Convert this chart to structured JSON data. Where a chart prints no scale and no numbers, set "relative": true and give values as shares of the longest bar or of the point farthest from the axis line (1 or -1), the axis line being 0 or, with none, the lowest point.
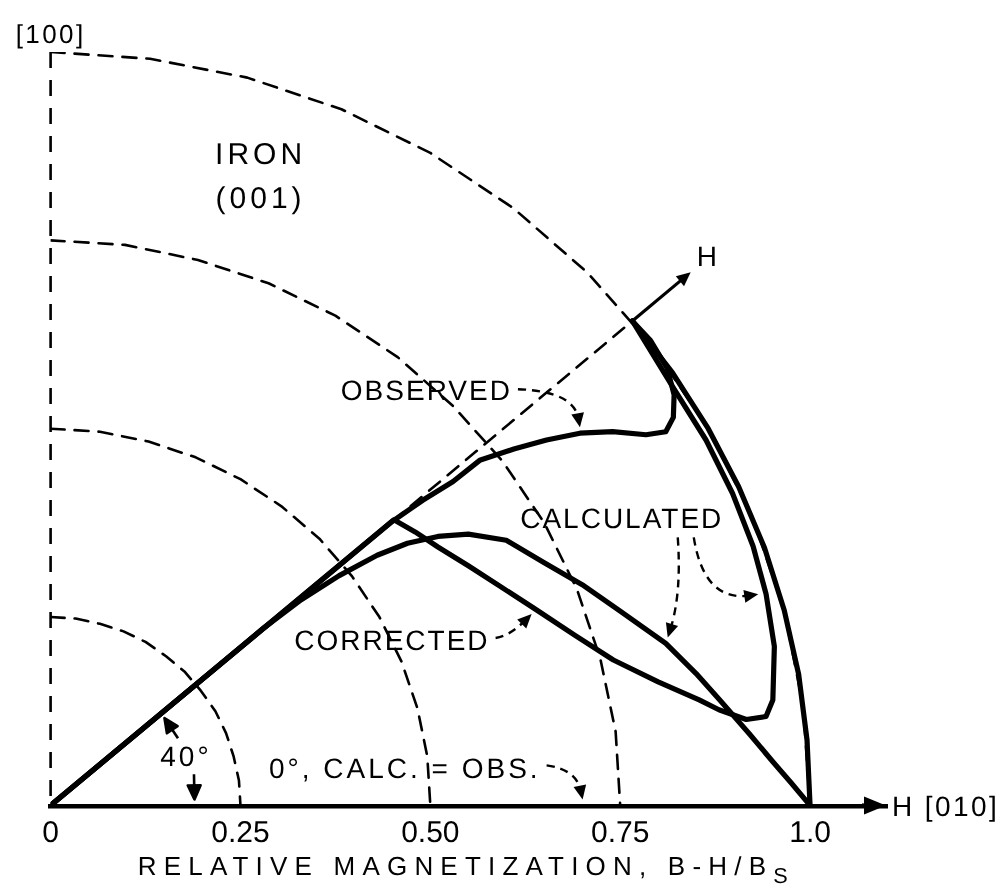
{
  "chart_data": {
    "type": "line",
    "title": "IRON (001)",
    "xlabel": "RELATIVE MAGNETIZATION, B-H/B$_{S}$",
    "relative": true,
    "xlim": [
      0,
      1.1
    ],
    "xticks": [
      0,
      0.25,
      {
        "value": 0.5,
        "label": "0.50"
      },
      0.75,
      {
        "value": 1,
        "label": "1.0"
      }
    ],
    "tick_labels": "x",
    "annotations": [
      "[100]",
      "H [010]",
      "40°",
      {
        "text": "OBSERVED",
        "x": 0.697,
        "y": 0.494
      },
      {
        "text": "CALCULATED",
        "x": 0.81,
        "y": 0.215
      },
      {
        "text": "CORRECTED",
        "x": 0.636,
        "y": 0.262
      },
      "0°, CALC. = OBS."
    ],
    "series": [
      {
        "name": "H",
        "color": "#000000",
        "line_style": "dashed",
        "x": [
          0.45,
          0.766
        ],
        "values": [
          0.377,
          0.643
        ]
      },
      {
        "color": "#000000",
        "x": [
          0,
          0.45,
          0.49,
          0.53,
          0.565,
          0.61,
          0.653,
          0.697,
          0.74,
          0.784,
          0.81,
          0.82,
          0.821,
          0.812,
          0.79,
          0.766
        ],
        "values": [
          0,
          0.377,
          0.405,
          0.43,
          0.458,
          0.473,
          0.485,
          0.494,
          0.496,
          0.492,
          0.496,
          0.515,
          0.545,
          0.58,
          0.617,
          0.643
        ]
      },
      {
        "color": "#000000",
        "x": [
          0,
          0.28,
          0.33,
          0.38,
          0.43,
          0.47,
          0.51,
          0.55,
          0.6,
          0.65,
          0.7,
          0.75,
          0.81,
          0.85,
          0.882,
          0.92,
          0.951,
          0.975,
          1,
          0.996,
          0.985,
          0.966,
          0.94,
          0.906,
          0.866,
          0.819,
          0.766
        ],
        "values": [
          0,
          0.235,
          0.273,
          0.305,
          0.332,
          0.348,
          0.357,
          0.36,
          0.352,
          0.322,
          0.293,
          0.258,
          0.215,
          0.175,
          0.139,
          0.095,
          0.058,
          0.03,
          0,
          0.087,
          0.174,
          0.259,
          0.342,
          0.423,
          0.5,
          0.574,
          0.643
        ]
      },
      {
        "color": "#000000",
        "x": [
          0,
          0.452,
          0.48,
          0.51,
          0.55,
          0.59,
          0.636,
          0.69,
          0.741,
          0.8,
          0.854,
          0.88,
          0.916,
          0.942,
          0.951,
          0.953,
          0.942,
          0.925,
          0.898,
          0.863,
          0.819,
          0.766
        ],
        "values": [
          0,
          0.379,
          0.363,
          0.343,
          0.318,
          0.292,
          0.262,
          0.226,
          0.193,
          0.164,
          0.14,
          0.127,
          0.114,
          0.118,
          0.14,
          0.211,
          0.281,
          0.344,
          0.414,
          0.485,
          0.556,
          0.643
        ]
      },
      {
        "color": "#000000",
        "line_style": "dashed",
        "x": [
          0,
          0.033,
          0.065,
          0.096,
          0.125,
          0.152,
          0.177,
          0.198,
          0.217,
          0.231,
          0.241,
          0.248,
          0.25
        ],
        "values": [
          0.25,
          0.248,
          0.241,
          0.231,
          0.217,
          0.198,
          0.177,
          0.152,
          0.125,
          0.096,
          0.065,
          0.033,
          0
        ]
      },
      {
        "color": "#000000",
        "line_style": "dashed",
        "x": [
          0,
          0.065,
          0.129,
          0.191,
          0.25,
          0.304,
          0.354,
          0.397,
          0.433,
          0.462,
          0.483,
          0.496,
          0.5
        ],
        "values": [
          0.5,
          0.496,
          0.483,
          0.462,
          0.433,
          0.397,
          0.354,
          0.304,
          0.25,
          0.191,
          0.129,
          0.065,
          0
        ]
      },
      {
        "color": "#000000",
        "line_style": "dashed",
        "x": [
          0,
          0.098,
          0.194,
          0.287,
          0.375,
          0.457,
          0.53,
          0.595,
          0.65,
          0.693,
          0.724,
          0.744,
          0.75
        ],
        "values": [
          0.75,
          0.744,
          0.724,
          0.693,
          0.65,
          0.595,
          0.53,
          0.457,
          0.375,
          0.287,
          0.194,
          0.098,
          0
        ]
      },
      {
        "color": "#000000",
        "line_style": "dashed",
        "x": [
          0,
          0.131,
          0.259,
          0.383,
          0.5,
          0.609,
          0.707,
          0.793,
          0.866,
          0.924,
          0.966,
          0.991,
          1
        ],
        "values": [
          1,
          0.991,
          0.966,
          0.924,
          0.866,
          0.793,
          0.707,
          0.609,
          0.5,
          0.383,
          0.259,
          0.131,
          0
        ]
      }
    ]
  }
}
